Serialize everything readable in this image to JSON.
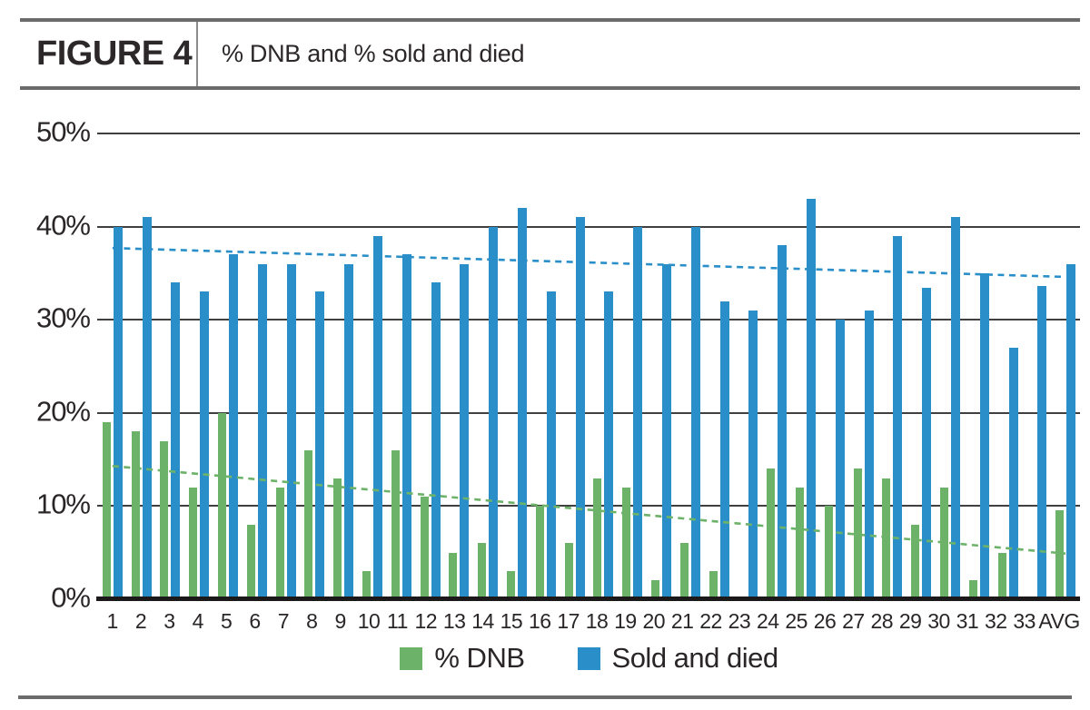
{
  "figure": {
    "label": "FIGURE 4",
    "title": "% DNB and % sold and died"
  },
  "chart_data": {
    "type": "bar",
    "title": "% DNB and % sold and died",
    "categories": [
      "1",
      "2",
      "3",
      "4",
      "5",
      "6",
      "7",
      "8",
      "9",
      "10",
      "11",
      "12",
      "13",
      "14",
      "15",
      "16",
      "17",
      "18",
      "19",
      "20",
      "21",
      "22",
      "23",
      "24",
      "25",
      "26",
      "27",
      "28",
      "29",
      "30",
      "31",
      "32",
      "33",
      "AVG"
    ],
    "series": [
      {
        "name": "% DNB",
        "color": "#6db269",
        "values": [
          19,
          18,
          17,
          12,
          20,
          8,
          12,
          16,
          13,
          3,
          16,
          11,
          5,
          6,
          3,
          10,
          6,
          13,
          12,
          2,
          6,
          3,
          0.2,
          14,
          12,
          10,
          14,
          13,
          8,
          12,
          2,
          5,
          0.2,
          9.6
        ]
      },
      {
        "name": "Sold and died",
        "color": "#2a8fc9",
        "values": [
          40,
          41,
          34,
          33,
          37,
          36,
          36,
          33,
          36,
          39,
          37,
          34,
          36,
          40,
          42,
          33,
          41,
          33,
          40,
          36,
          40,
          32,
          31,
          38,
          43,
          30,
          31,
          39,
          33.4,
          41,
          35,
          27,
          33.6,
          36
        ]
      }
    ],
    "trendlines": [
      {
        "series": "% DNB",
        "start": 14.3,
        "end": 4.9,
        "style": "dashed"
      },
      {
        "series": "Sold and died",
        "start": 37.7,
        "end": 34.6,
        "style": "dashed"
      }
    ],
    "yticks": [
      {
        "value": 0,
        "label": "0%"
      },
      {
        "value": 10,
        "label": "10%"
      },
      {
        "value": 20,
        "label": "20%"
      },
      {
        "value": 30,
        "label": "30%"
      },
      {
        "value": 40,
        "label": "40%"
      },
      {
        "value": 50,
        "label": "50%"
      }
    ],
    "ylim": [
      0,
      50
    ],
    "grid": true,
    "legend_position": "bottom"
  }
}
